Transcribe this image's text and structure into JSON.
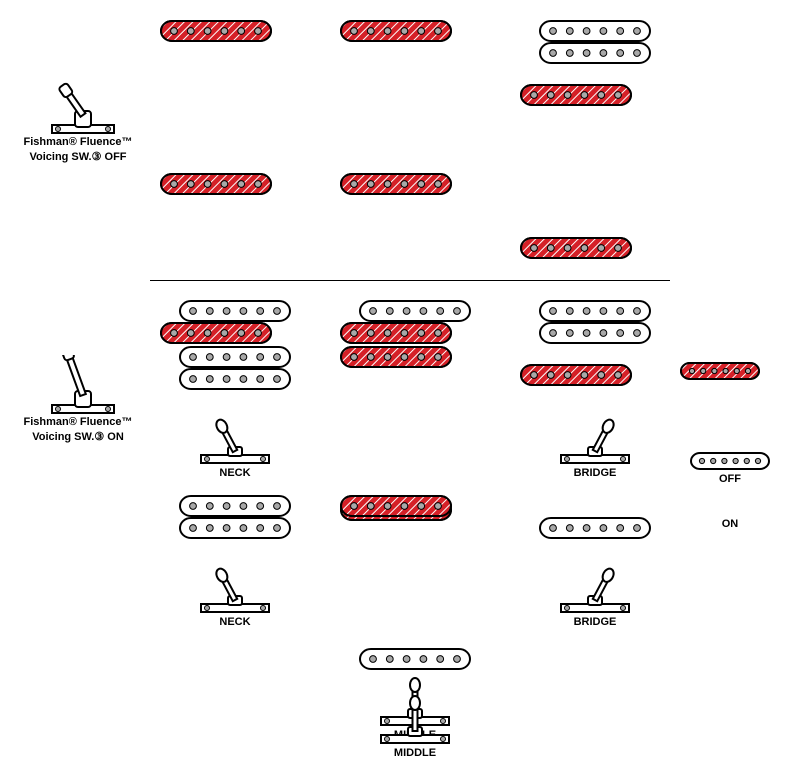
{
  "colors": {
    "active_fill": "#d52027",
    "inactive_fill": "#ffffff",
    "stroke": "#000000",
    "pole": "#a8a8a8",
    "switch_tip_fill": "#ffffff",
    "tog_base_fill": "#ffffff"
  },
  "labels": {
    "off_label_line1": "Fishman® Fluence™",
    "off_label_line2": "Voicing SW.③ OFF",
    "on_label_line1": "Fishman® Fluence™",
    "on_label_line2": "Voicing SW.③ ON",
    "neck": "NECK",
    "middle": "MIDDLE",
    "bridge": "BRIDGE",
    "legend_on": "ON",
    "legend_off": "OFF"
  },
  "sections": [
    {
      "id": "off",
      "push_pull_state": "down",
      "columns": [
        {
          "pos": "neck",
          "top": [
            "on",
            "on"
          ],
          "bottom": [
            "off",
            "off"
          ],
          "toggle": "left"
        },
        {
          "pos": "middle",
          "top": [
            "on",
            "on"
          ],
          "bottom": [
            "on",
            "on"
          ],
          "toggle": "center"
        },
        {
          "pos": "bridge",
          "top": [
            "off",
            "off"
          ],
          "bottom": [
            "on",
            "on"
          ],
          "toggle": "right"
        }
      ]
    },
    {
      "id": "on",
      "push_pull_state": "up",
      "columns": [
        {
          "pos": "neck",
          "top": [
            "off",
            "on"
          ],
          "bottom": [
            "off",
            "off"
          ],
          "toggle": "left"
        },
        {
          "pos": "middle",
          "top": [
            "off",
            "on"
          ],
          "bottom": [
            "on",
            "off"
          ],
          "toggle": "center"
        },
        {
          "pos": "bridge",
          "top": [
            "off",
            "off"
          ],
          "bottom": [
            "on",
            "off"
          ],
          "toggle": "right"
        }
      ]
    }
  ],
  "legend": {
    "on_coil": "on",
    "off_coil": "off"
  },
  "geometry": {
    "coil_width": 112,
    "coil_height": 22,
    "coil_rx": 11,
    "pole_count": 6,
    "pole_radius": 3.4,
    "legend_coil_width": 80,
    "legend_coil_height": 18,
    "legend_coil_rx": 9,
    "toggle_width": 80,
    "toggle_height": 55,
    "pushpull_width": 70,
    "pushpull_height": 60
  }
}
